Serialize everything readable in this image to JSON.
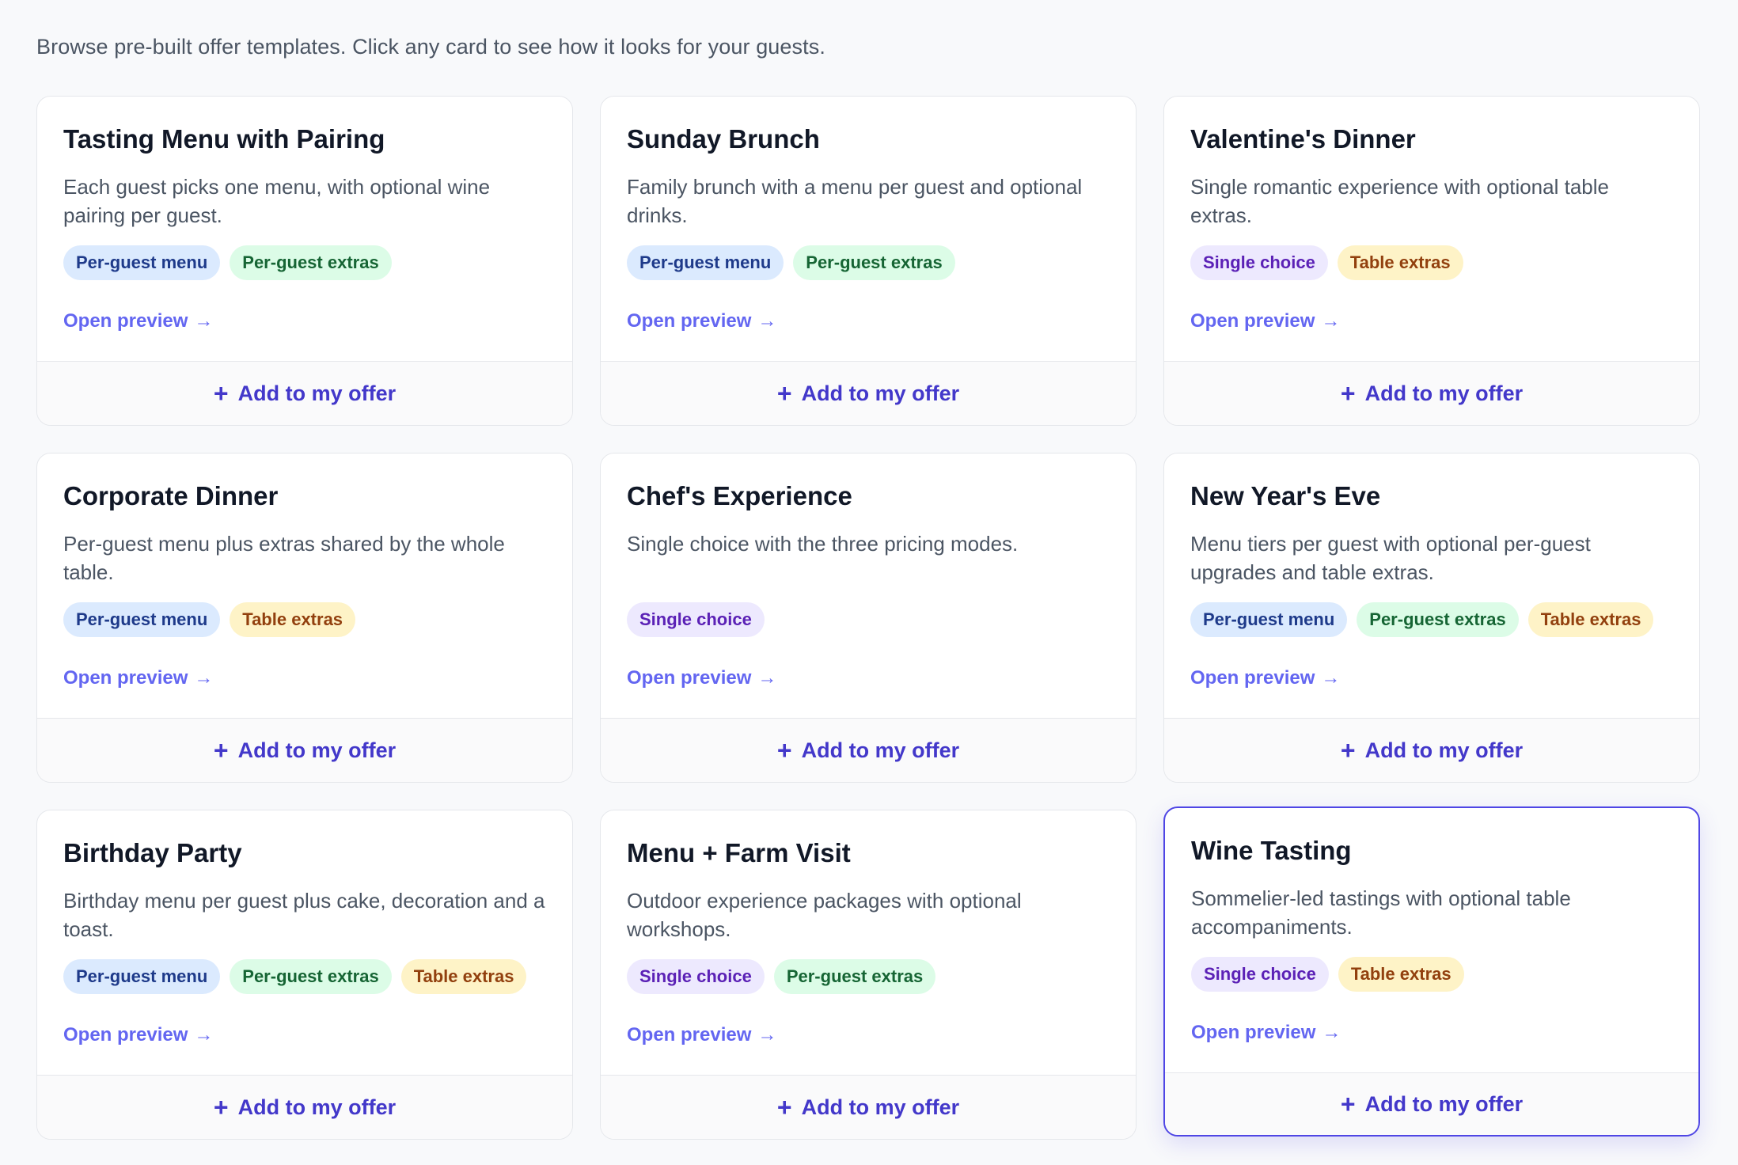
{
  "intro": "Browse pre-built offer templates. Click any card to see how it looks for your guests.",
  "preview_label": "Open preview",
  "add_label": "Add to my offer",
  "icons": {
    "add": "plus-icon",
    "preview": "arrow-right-icon"
  },
  "colors": {
    "accent": "#4338ca",
    "link": "#6366f1",
    "tag_per_guest_menu": "#dbeafe",
    "tag_per_guest_extras": "#dcfce7",
    "tag_single_choice": "#ede9fe",
    "tag_table_extras": "#fef3c7"
  },
  "cards": [
    {
      "title": "Tasting Menu with Pairing",
      "description": "Each guest picks one menu, with optional wine pairing per guest.",
      "tags": [
        "Per-guest menu",
        "Per-guest extras"
      ]
    },
    {
      "title": "Sunday Brunch",
      "description": "Family brunch with a menu per guest and optional drinks.",
      "tags": [
        "Per-guest menu",
        "Per-guest extras"
      ]
    },
    {
      "title": "Valentine's Dinner",
      "description": "Single romantic experience with optional table extras.",
      "tags": [
        "Single choice",
        "Table extras"
      ]
    },
    {
      "title": "Corporate Dinner",
      "description": "Per-guest menu plus extras shared by the whole table.",
      "tags": [
        "Per-guest menu",
        "Table extras"
      ]
    },
    {
      "title": "Chef's Experience",
      "description": "Single choice with the three pricing modes.",
      "tags": [
        "Single choice"
      ]
    },
    {
      "title": "New Year's Eve",
      "description": "Menu tiers per guest with optional per-guest upgrades and table extras.",
      "tags": [
        "Per-guest menu",
        "Per-guest extras",
        "Table extras"
      ]
    },
    {
      "title": "Birthday Party",
      "description": "Birthday menu per guest plus cake, decoration and a toast.",
      "tags": [
        "Per-guest menu",
        "Per-guest extras",
        "Table extras"
      ]
    },
    {
      "title": "Menu + Farm Visit",
      "description": "Outdoor experience packages with optional workshops.",
      "tags": [
        "Single choice",
        "Per-guest extras"
      ]
    },
    {
      "title": "Wine Tasting",
      "description": "Sommelier-led tastings with optional table accompaniments.",
      "tags": [
        "Single choice",
        "Table extras"
      ],
      "selected": true
    }
  ]
}
